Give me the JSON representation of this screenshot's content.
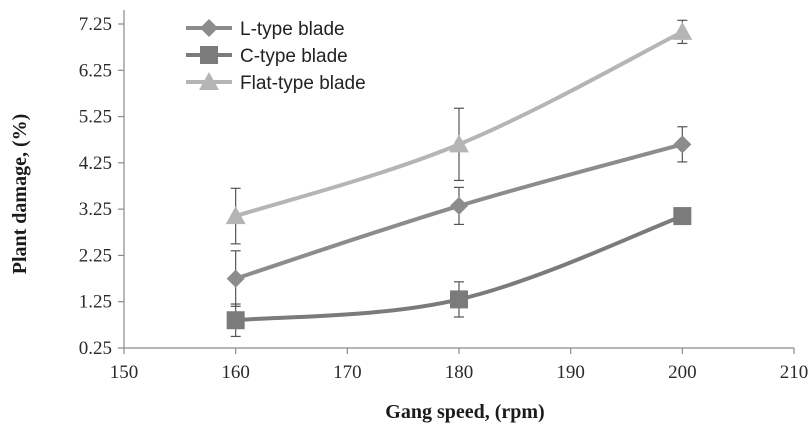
{
  "chart_data": {
    "type": "line",
    "title": "",
    "xlabel": "Gang speed, (rpm)",
    "ylabel": "Plant damage,  (%)",
    "xlim": [
      150,
      210
    ],
    "ylim": [
      0.25,
      7.25
    ],
    "xticks": [
      150,
      160,
      170,
      180,
      190,
      200,
      210
    ],
    "yticks": [
      "0.25",
      "1.25",
      "2.25",
      "3.25",
      "4.25",
      "5.25",
      "6.25",
      "7.25"
    ],
    "x": [
      160,
      180,
      200
    ],
    "grid": false,
    "legend_position": "top-left",
    "series": [
      {
        "name": "L-type blade",
        "marker": "diamond",
        "color": "#8c8c8c",
        "values": [
          1.75,
          3.32,
          4.65
        ],
        "errors": [
          0.6,
          0.4,
          0.38
        ]
      },
      {
        "name": "C-type blade",
        "marker": "square",
        "color": "#7b7b7b",
        "values": [
          0.85,
          1.3,
          3.1
        ],
        "errors": [
          0.35,
          0.38,
          0.12
        ]
      },
      {
        "name": "Flat-type blade",
        "marker": "triangle",
        "color": "#b5b5b5",
        "values": [
          3.1,
          4.65,
          7.08
        ],
        "errors": [
          0.6,
          0.78,
          0.25
        ]
      }
    ]
  }
}
